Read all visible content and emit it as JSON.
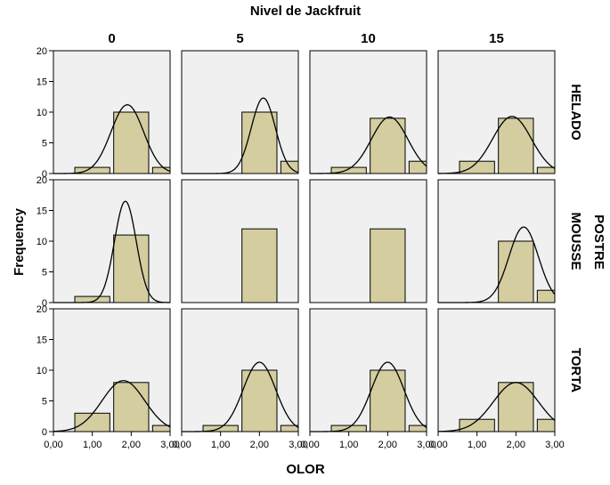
{
  "chart_data": {
    "type": "bar",
    "title": "Nivel de Jackfruit",
    "xlabel": "OLOR",
    "ylabel": "Frequency",
    "row_group_label": "POSTRE",
    "columns": [
      "0",
      "5",
      "10",
      "15"
    ],
    "rows": [
      "HELADO",
      "MOUSSE",
      "TORTA"
    ],
    "xlim": [
      0,
      3
    ],
    "ylim": [
      0,
      20
    ],
    "x_ticks": [
      "0,00",
      "1,00",
      "2,00",
      "3,00"
    ],
    "y_ticks": [
      "0",
      "5",
      "10",
      "15",
      "20"
    ],
    "bin_centers": [
      1,
      2,
      3
    ],
    "bin_width": 0.9,
    "bar_color": "#d3cda0",
    "panel_bg": "#f0f0f0",
    "grid": false,
    "panels": [
      {
        "row": "HELADO",
        "col": "0",
        "counts": [
          1,
          10,
          1
        ],
        "curve": {
          "mean": 1.9,
          "sd": 0.42,
          "peak": 11.2
        }
      },
      {
        "row": "HELADO",
        "col": "5",
        "counts": [
          0,
          10,
          2
        ],
        "curve": {
          "mean": 2.1,
          "sd": 0.31,
          "peak": 12.3
        }
      },
      {
        "row": "HELADO",
        "col": "10",
        "counts": [
          1,
          9,
          2
        ],
        "curve": {
          "mean": 2.05,
          "sd": 0.47,
          "peak": 9.2
        }
      },
      {
        "row": "HELADO",
        "col": "15",
        "counts": [
          2,
          9,
          1
        ],
        "curve": {
          "mean": 1.9,
          "sd": 0.5,
          "peak": 9.3
        }
      },
      {
        "row": "MOUSSE",
        "col": "0",
        "counts": [
          1,
          11,
          0
        ],
        "curve": {
          "mean": 1.85,
          "sd": 0.28,
          "peak": 16.5
        }
      },
      {
        "row": "MOUSSE",
        "col": "5",
        "counts": [
          0,
          12,
          0
        ],
        "curve": null
      },
      {
        "row": "MOUSSE",
        "col": "10",
        "counts": [
          0,
          12,
          0
        ],
        "curve": null
      },
      {
        "row": "MOUSSE",
        "col": "15",
        "counts": [
          0,
          10,
          2
        ],
        "curve": {
          "mean": 2.2,
          "sd": 0.38,
          "peak": 12.3
        }
      },
      {
        "row": "TORTA",
        "col": "0",
        "counts": [
          3,
          8,
          1
        ],
        "curve": {
          "mean": 1.8,
          "sd": 0.55,
          "peak": 8.3
        }
      },
      {
        "row": "TORTA",
        "col": "5",
        "counts": [
          1,
          10,
          1
        ],
        "curve": {
          "mean": 2.0,
          "sd": 0.42,
          "peak": 11.3
        }
      },
      {
        "row": "TORTA",
        "col": "10",
        "counts": [
          1,
          10,
          1
        ],
        "curve": {
          "mean": 2.0,
          "sd": 0.42,
          "peak": 11.3
        }
      },
      {
        "row": "TORTA",
        "col": "15",
        "counts": [
          2,
          8,
          2
        ],
        "curve": {
          "mean": 2.0,
          "sd": 0.58,
          "peak": 8.0
        }
      }
    ]
  }
}
